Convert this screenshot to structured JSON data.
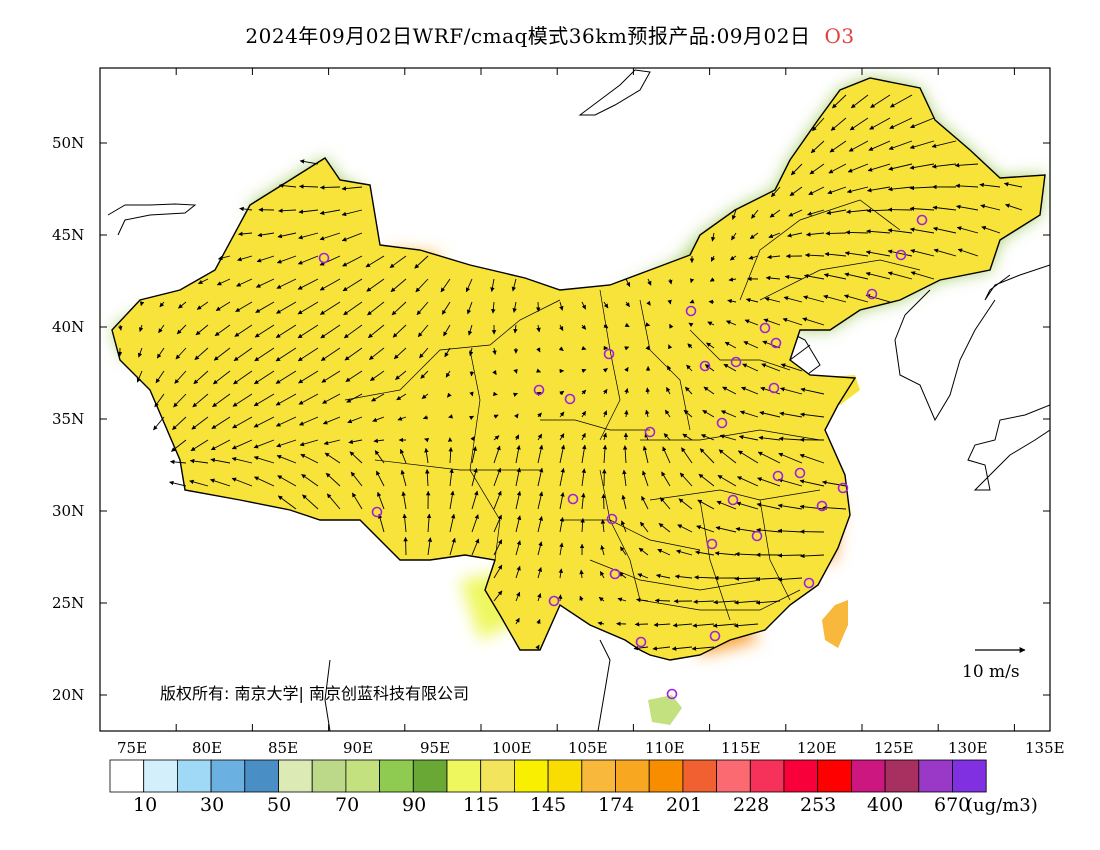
{
  "title": {
    "main": "2024年09月02日WRF/cmaq模式36km预报产品:09月02日",
    "species": "O3",
    "species_color": "#e0403a"
  },
  "axes": {
    "lon_labels": [
      "75E",
      "80E",
      "85E",
      "90E",
      "95E",
      "100E",
      "105E",
      "110E",
      "115E",
      "120E",
      "125E",
      "130E",
      "135E"
    ],
    "lat_labels": [
      "50N",
      "45N",
      "40N",
      "35N",
      "30N",
      "25N",
      "20N"
    ]
  },
  "colorbar": {
    "colors": [
      "#ffffff",
      "#d3effb",
      "#9fd9f5",
      "#6ab0e0",
      "#4a8ec6",
      "#dcebb6",
      "#bcd98a",
      "#c4e17f",
      "#8fcb50",
      "#6aa836",
      "#eef75e",
      "#f2e45c",
      "#f8f000",
      "#f9dd00",
      "#f8b83b",
      "#f8a820",
      "#f88d00",
      "#f06030",
      "#fa6a70",
      "#f7325a",
      "#f8003a",
      "#ff0000",
      "#cc1680",
      "#a83060",
      "#9a39c8",
      "#8030e0"
    ],
    "labels": [
      "10",
      "30",
      "50",
      "70",
      "90",
      "115",
      "145",
      "174",
      "201",
      "228",
      "253",
      "400",
      "670"
    ],
    "unit": "(ug/m3)"
  },
  "copyright": "版权所有: 南京大学| 南京创蓝科技有限公司",
  "wind_reference": "10 m/s",
  "colors": {
    "green_zone": "#a8cf6a",
    "yellow_zone": "#f8e33a",
    "orange_zone": "#f8a030",
    "red_zone": "#f0405a",
    "station_marker": "#a020e0"
  }
}
